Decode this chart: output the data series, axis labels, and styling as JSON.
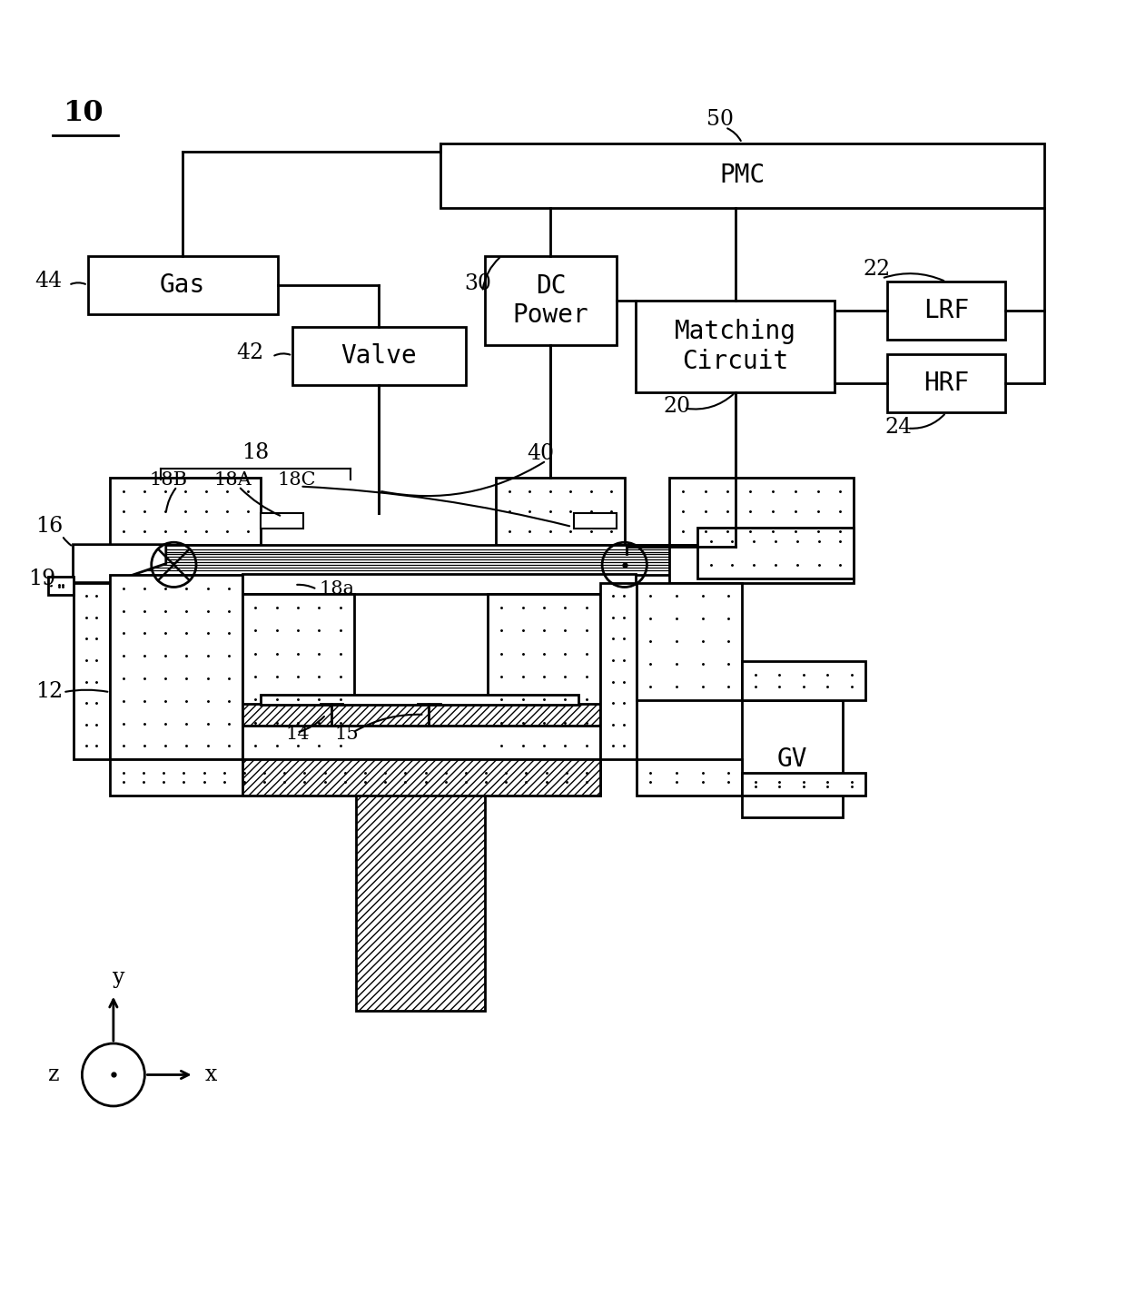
{
  "bg": "#ffffff",
  "lw": 2.0,
  "fs": 20,
  "fs_sm": 17,
  "boxes": {
    "PMC": [
      0.39,
      0.893,
      0.54,
      0.058
    ],
    "Gas": [
      0.075,
      0.798,
      0.17,
      0.052
    ],
    "Valve": [
      0.258,
      0.735,
      0.155,
      0.052
    ],
    "DCPow": [
      0.43,
      0.77,
      0.118,
      0.08
    ],
    "Match": [
      0.565,
      0.728,
      0.178,
      0.082
    ],
    "LRF": [
      0.79,
      0.775,
      0.105,
      0.052
    ],
    "HRF": [
      0.79,
      0.71,
      0.105,
      0.052
    ],
    "GV": [
      0.66,
      0.348,
      0.09,
      0.105
    ]
  },
  "box_labels": {
    "PMC": "PMC",
    "Gas": "Gas",
    "Valve": "Valve",
    "DCPow": "DC\nPower",
    "Match": "Matching\nCircuit",
    "LRF": "LRF",
    "HRF": "HRF",
    "GV": "GV"
  }
}
